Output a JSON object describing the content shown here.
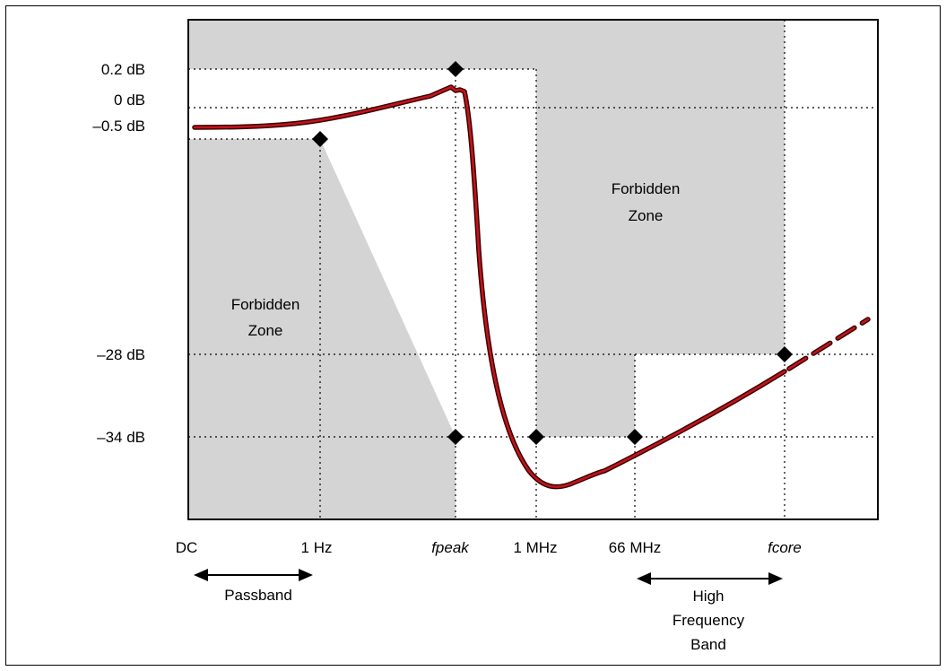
{
  "chart_data": {
    "type": "line",
    "y_axis_labels": [
      {
        "label": "0.2 dB",
        "value": 0.2
      },
      {
        "label": "0 dB",
        "value": 0
      },
      {
        "label": "–0.5 dB",
        "value": -0.5
      },
      {
        "label": "–28 dB",
        "value": -28
      },
      {
        "label": "–34 dB",
        "value": -34
      }
    ],
    "x_axis_labels": [
      {
        "label": "DC",
        "italic": false
      },
      {
        "label": "1 Hz",
        "italic": false
      },
      {
        "label": "fpeak",
        "italic": true
      },
      {
        "label": "1 MHz",
        "italic": false
      },
      {
        "label": "66 MHz",
        "italic": false
      },
      {
        "label": "fcore",
        "italic": true
      }
    ],
    "zones": [
      {
        "name": "passband_forbidden",
        "text_lines": [
          "Forbidden",
          "Zone"
        ]
      },
      {
        "name": "stopband_forbidden",
        "text_lines": [
          "Forbidden",
          "Zone"
        ]
      }
    ],
    "bands": [
      {
        "name": "passband",
        "text_lines": [
          "Passband"
        ]
      },
      {
        "name": "high_frequency_band",
        "text_lines": [
          "High",
          "Frequency",
          "Band"
        ]
      }
    ],
    "markers": [
      {
        "x": "1 Hz",
        "y": -0.5
      },
      {
        "x": "fpeak",
        "y": 0.2
      },
      {
        "x": "fpeak",
        "y": -34
      },
      {
        "x": "1 MHz",
        "y": -34
      },
      {
        "x": "66 MHz",
        "y": -34
      },
      {
        "x": "fcore",
        "y": -28
      }
    ],
    "curve_color": "#c0141c",
    "zone_color": "#d4d4d4",
    "grid": "dotted"
  }
}
